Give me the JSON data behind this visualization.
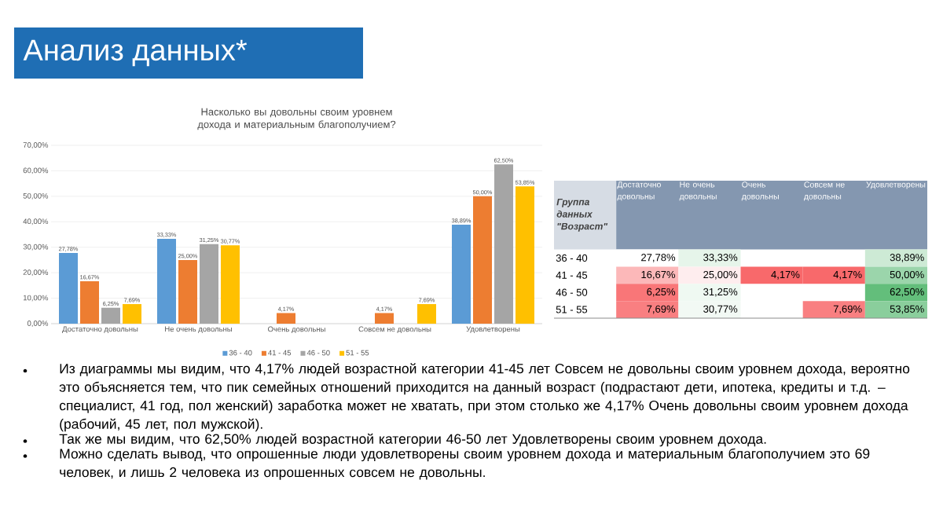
{
  "chart_data": [
    {
      "type": "bar",
      "title": "Насколько вы довольны своим уровнем дохода и материальным благополучием?",
      "categories": [
        "Достаточно довольны",
        "Не очень довольны",
        "Очень довольны",
        "Совсем не довольны",
        "Удовлетворены"
      ],
      "series": [
        {
          "name": "36 - 40",
          "color": "#5b9bd5",
          "values": [
            27.78,
            33.33,
            null,
            null,
            38.89
          ],
          "value_labels": [
            "27,78%",
            "33,33%",
            null,
            null,
            "38,89%"
          ]
        },
        {
          "name": "41 - 45",
          "color": "#ed7d31",
          "values": [
            16.67,
            25.0,
            4.17,
            4.17,
            50.0
          ],
          "value_labels": [
            "16,67%",
            "25,00%",
            "4,17%",
            "4,17%",
            "50,00%"
          ]
        },
        {
          "name": "46 - 50",
          "color": "#a5a5a5",
          "values": [
            6.25,
            31.25,
            null,
            null,
            62.5
          ],
          "value_labels": [
            "6,25%",
            "31,25%",
            null,
            null,
            "62,50%"
          ]
        },
        {
          "name": "51 - 55",
          "color": "#ffc000",
          "values": [
            7.69,
            30.77,
            null,
            7.69,
            53.85
          ],
          "value_labels": [
            "7,69%",
            "30,77%",
            null,
            "7,69%",
            "53,85%"
          ]
        }
      ],
      "ylim": [
        0,
        70
      ],
      "yticks": [
        {
          "value": 0,
          "label": "0,00%"
        },
        {
          "value": 10,
          "label": "10,00%"
        },
        {
          "value": 20,
          "label": "20,00%"
        },
        {
          "value": 30,
          "label": "30,00%"
        },
        {
          "value": 40,
          "label": "40,00%"
        },
        {
          "value": 50,
          "label": "50,00%"
        },
        {
          "value": 60,
          "label": "60,00%"
        },
        {
          "value": 70,
          "label": "70,00%"
        }
      ],
      "grid": "y",
      "legend": "bottom",
      "annotations": [
        "Анализ данных*",
        "Из диаграммы мы видим, что 4,17% людей возрастной категории 41-45 лет Совсем не довольны своим уровнем дохода, вероятно это объясняется тем, что пик семейных отношений приходится на данный возраст (подрастают дети, ипотека, кредиты и т.д. – специалист, 41 год, пол женский) заработка может не хватать, при этом столько же 4,17% Очень довольны своим уровнем дохода (рабочий, 45 лет, пол мужской).",
        "Так же мы видим, что 62,50% людей возрастной категории 46-50 лет Удовлетворены своим уровнем дохода.",
        "Можно сделать вывод, что опрошенные люди удовлетворены своим уровнем дохода и материальным благополучием это 69 человек,  и лишь 2 человека из опрошенных совсем не довольны."
      ]
    },
    {
      "type": "heatmap",
      "ylabel": "Группа данных \"Возраст\"",
      "categories": [
        "Достаточно довольны",
        "Не очень довольны",
        "Очень довольны",
        "Совсем не довольны",
        "Удовлетворены"
      ],
      "y_categories": [
        "36 - 40",
        "41 - 45",
        "46 - 50",
        "51 - 55"
      ],
      "cells": [
        [
          27.78,
          33.33,
          null,
          null,
          38.89
        ],
        [
          16.67,
          25.0,
          4.17,
          4.17,
          50.0
        ],
        [
          6.25,
          31.25,
          null,
          null,
          62.5
        ],
        [
          7.69,
          30.77,
          null,
          7.69,
          53.85
        ]
      ],
      "cell_labels": [
        [
          "27,78%",
          "33,33%",
          null,
          null,
          "38,89%"
        ],
        [
          "16,67%",
          "25,00%",
          "4,17%",
          "4,17%",
          "50,00%"
        ],
        [
          "6,25%",
          "31,25%",
          null,
          null,
          "62,50%"
        ],
        [
          "7,69%",
          "30,77%",
          null,
          "7,69%",
          "53,85%"
        ]
      ]
    }
  ]
}
